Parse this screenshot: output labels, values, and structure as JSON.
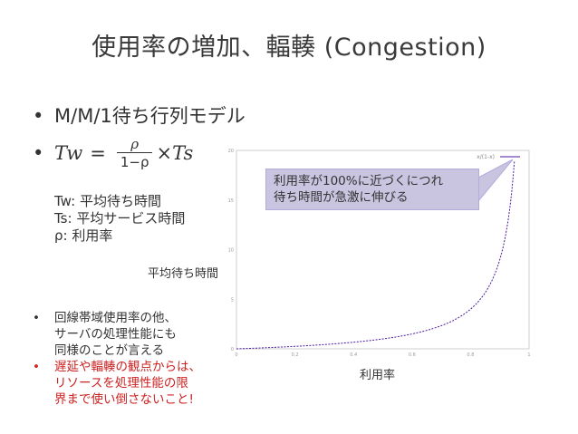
{
  "slide": {
    "title": "使用率の増加、輻輳 (Congestion)",
    "bullets": [
      "M/M/1待ち行列モデル"
    ],
    "formula": {
      "lhs": "Tw",
      "eq": "=",
      "numerator": "ρ",
      "denominator": "1−ρ",
      "rhs": "×Ts"
    },
    "definitions": [
      "Tw: 平均待ち時間",
      "Ts: 平均サービス時間",
      "ρ: 利用率"
    ],
    "notes": [
      {
        "lines": [
          "回線帯域使用率の他、",
          "サーバの処理性能にも",
          "同様のことが言える"
        ],
        "color": "#333333"
      },
      {
        "lines": [
          "遅延や輻輳の観点からは、",
          "リソースを処理性能の限",
          "界まで使い倒さないこと!"
        ],
        "color": "#cc2222"
      }
    ],
    "callout": [
      "利用率が100%に近づくにつれ",
      "待ち時間が急激に伸びる"
    ],
    "callout_color": "#c9c4e0",
    "bullet_glyph": "•"
  },
  "chart_data": {
    "type": "line",
    "xlabel": "利用率",
    "ylabel": "平均待ち時間",
    "xlim": [
      0,
      1
    ],
    "ylim": [
      0,
      20
    ],
    "x_ticks": [
      "0",
      "0.2",
      "0.4",
      "0.6",
      "0.8",
      "1"
    ],
    "y_ticks": [
      "0",
      "5",
      "10",
      "15",
      "20"
    ],
    "series": [
      {
        "name": "x/(1-x)",
        "color": "#4b1aa0",
        "style": "dashed",
        "function": "x/(1-x)",
        "x": [
          0,
          0.1,
          0.2,
          0.3,
          0.4,
          0.5,
          0.6,
          0.7,
          0.8,
          0.85,
          0.9,
          0.92,
          0.94,
          0.95
        ],
        "y": [
          0,
          0.11,
          0.25,
          0.43,
          0.67,
          1.0,
          1.5,
          2.33,
          4.0,
          5.67,
          9.0,
          11.5,
          15.67,
          19.0
        ]
      }
    ],
    "grid": false,
    "legend": "top-right"
  }
}
